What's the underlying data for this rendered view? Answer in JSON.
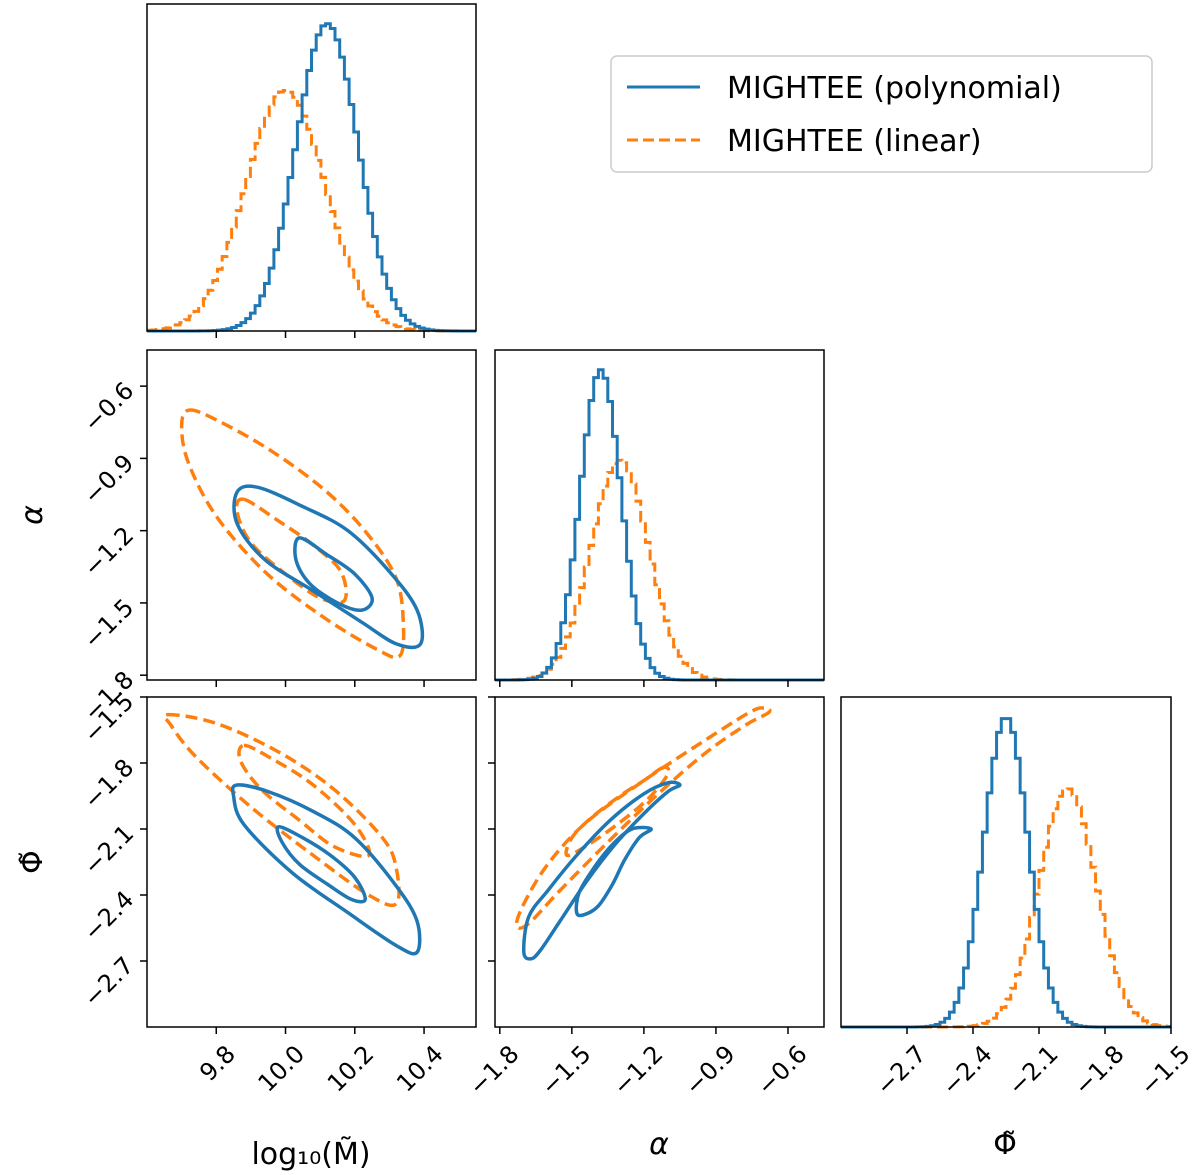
{
  "chart_data": {
    "type": "corner",
    "parameters": [
      {
        "key": "logM",
        "label": "log₁₀(M̃)",
        "range": [
          9.6,
          10.55
        ],
        "ticks": [
          9.8,
          10.0,
          10.2,
          10.4
        ],
        "tick_labels": [
          "9.8",
          "10.0",
          "10.2",
          "10.4"
        ]
      },
      {
        "key": "alpha",
        "label": "α",
        "range": [
          -1.82,
          -0.45
        ],
        "ticks": [
          -1.8,
          -1.5,
          -1.2,
          -0.9,
          -0.6
        ],
        "tick_labels": [
          "−1.8",
          "−1.5",
          "−1.2",
          "−0.9",
          "−0.6"
        ]
      },
      {
        "key": "phi",
        "label": "Φ̃",
        "range": [
          -3.0,
          -1.5
        ],
        "ticks": [
          -2.7,
          -2.4,
          -2.1,
          -1.8,
          -1.5
        ],
        "tick_labels": [
          "−2.7",
          "−2.4",
          "−2.1",
          "−1.8",
          "−1.5"
        ]
      }
    ],
    "legend": {
      "placement": "top-right"
    },
    "series": [
      {
        "name": "MIGHTEE (polynomial)",
        "color": "#1f77b4",
        "linestyle": "solid",
        "marginals": {
          "logM": {
            "mean": 10.12,
            "sd": 0.09
          },
          "alpha": {
            "mean": -1.38,
            "sd": 0.085
          },
          "phi": {
            "mean": -2.25,
            "sd": 0.1
          }
        },
        "contours": {
          "alpha_vs_logM": [
            {
              "level": "inner",
              "points": [
                [
                  10.04,
                  -1.23
                ],
                [
                  10.12,
                  -1.3
                ],
                [
                  10.2,
                  -1.38
                ],
                [
                  10.25,
                  -1.48
                ],
                [
                  10.22,
                  -1.53
                ],
                [
                  10.15,
                  -1.5
                ],
                [
                  10.07,
                  -1.42
                ],
                [
                  10.03,
                  -1.32
                ]
              ]
            },
            {
              "level": "outer",
              "points": [
                [
                  9.86,
                  -1.04
                ],
                [
                  9.92,
                  -1.02
                ],
                [
                  10.05,
                  -1.1
                ],
                [
                  10.18,
                  -1.2
                ],
                [
                  10.3,
                  -1.37
                ],
                [
                  10.38,
                  -1.53
                ],
                [
                  10.39,
                  -1.67
                ],
                [
                  10.32,
                  -1.67
                ],
                [
                  10.22,
                  -1.58
                ],
                [
                  10.08,
                  -1.45
                ],
                [
                  9.94,
                  -1.32
                ],
                [
                  9.86,
                  -1.17
                ]
              ]
            }
          ],
          "phi_vs_logM": [
            {
              "level": "inner",
              "points": [
                [
                  9.98,
                  -2.09
                ],
                [
                  10.05,
                  -2.14
                ],
                [
                  10.13,
                  -2.22
                ],
                [
                  10.2,
                  -2.32
                ],
                [
                  10.23,
                  -2.42
                ],
                [
                  10.19,
                  -2.42
                ],
                [
                  10.12,
                  -2.35
                ],
                [
                  10.04,
                  -2.26
                ],
                [
                  9.99,
                  -2.16
                ]
              ]
            },
            {
              "level": "outer",
              "points": [
                [
                  9.86,
                  -1.9
                ],
                [
                  9.95,
                  -1.93
                ],
                [
                  10.08,
                  -2.02
                ],
                [
                  10.2,
                  -2.14
                ],
                [
                  10.32,
                  -2.36
                ],
                [
                  10.38,
                  -2.52
                ],
                [
                  10.38,
                  -2.66
                ],
                [
                  10.32,
                  -2.63
                ],
                [
                  10.18,
                  -2.48
                ],
                [
                  10.02,
                  -2.3
                ],
                [
                  9.88,
                  -2.08
                ],
                [
                  9.85,
                  -1.95
                ]
              ]
            }
          ],
          "phi_vs_alpha": [
            {
              "level": "inner",
              "points": [
                [
                  -1.17,
                  -2.1
                ],
                [
                  -1.22,
                  -2.14
                ],
                [
                  -1.28,
                  -2.24
                ],
                [
                  -1.33,
                  -2.35
                ],
                [
                  -1.39,
                  -2.45
                ],
                [
                  -1.45,
                  -2.49
                ],
                [
                  -1.48,
                  -2.48
                ],
                [
                  -1.47,
                  -2.39
                ],
                [
                  -1.41,
                  -2.28
                ],
                [
                  -1.33,
                  -2.17
                ],
                [
                  -1.25,
                  -2.1
                ]
              ]
            },
            {
              "level": "outer",
              "points": [
                [
                  -1.05,
                  -1.9
                ],
                [
                  -1.1,
                  -1.93
                ],
                [
                  -1.2,
                  -2.03
                ],
                [
                  -1.32,
                  -2.17
                ],
                [
                  -1.44,
                  -2.34
                ],
                [
                  -1.55,
                  -2.52
                ],
                [
                  -1.63,
                  -2.65
                ],
                [
                  -1.67,
                  -2.69
                ],
                [
                  -1.7,
                  -2.66
                ],
                [
                  -1.68,
                  -2.5
                ],
                [
                  -1.6,
                  -2.38
                ],
                [
                  -1.48,
                  -2.22
                ],
                [
                  -1.34,
                  -2.06
                ],
                [
                  -1.2,
                  -1.94
                ],
                [
                  -1.1,
                  -1.89
                ]
              ]
            }
          ]
        }
      },
      {
        "name": "MIGHTEE (linear)",
        "color": "#ff7f0e",
        "linestyle": "dashed",
        "marginals": {
          "logM": {
            "mean": 10.0,
            "sd": 0.115
          },
          "alpha": {
            "mean": -1.3,
            "sd": 0.12
          },
          "phi": {
            "mean": -1.97,
            "sd": 0.13
          }
        },
        "contours": {
          "alpha_vs_logM": [
            {
              "level": "inner",
              "points": [
                [
                  9.88,
                  -1.07
                ],
                [
                  9.98,
                  -1.16
                ],
                [
                  10.08,
                  -1.26
                ],
                [
                  10.16,
                  -1.37
                ],
                [
                  10.17,
                  -1.49
                ],
                [
                  10.1,
                  -1.48
                ],
                [
                  10.0,
                  -1.38
                ],
                [
                  9.9,
                  -1.25
                ],
                [
                  9.86,
                  -1.12
                ]
              ]
            },
            {
              "level": "outer",
              "points": [
                [
                  9.72,
                  -0.7
                ],
                [
                  9.8,
                  -0.74
                ],
                [
                  9.96,
                  -0.87
                ],
                [
                  10.12,
                  -1.04
                ],
                [
                  10.24,
                  -1.22
                ],
                [
                  10.32,
                  -1.4
                ],
                [
                  10.34,
                  -1.58
                ],
                [
                  10.33,
                  -1.72
                ],
                [
                  10.26,
                  -1.69
                ],
                [
                  10.1,
                  -1.55
                ],
                [
                  9.94,
                  -1.37
                ],
                [
                  9.8,
                  -1.14
                ],
                [
                  9.72,
                  -0.92
                ],
                [
                  9.7,
                  -0.77
                ]
              ]
            }
          ],
          "phi_vs_logM": [
            {
              "level": "inner",
              "points": [
                [
                  9.88,
                  -1.72
                ],
                [
                  9.96,
                  -1.78
                ],
                [
                  10.08,
                  -1.9
                ],
                [
                  10.2,
                  -2.08
                ],
                [
                  10.24,
                  -2.22
                ],
                [
                  10.14,
                  -2.18
                ],
                [
                  10.04,
                  -2.06
                ],
                [
                  9.93,
                  -1.92
                ],
                [
                  9.87,
                  -1.79
                ]
              ]
            },
            {
              "level": "outer",
              "points": [
                [
                  9.66,
                  -1.58
                ],
                [
                  9.8,
                  -1.62
                ],
                [
                  9.98,
                  -1.75
                ],
                [
                  10.14,
                  -1.92
                ],
                [
                  10.28,
                  -2.14
                ],
                [
                  10.32,
                  -2.28
                ],
                [
                  10.32,
                  -2.44
                ],
                [
                  10.24,
                  -2.4
                ],
                [
                  10.08,
                  -2.22
                ],
                [
                  9.9,
                  -2.0
                ],
                [
                  9.74,
                  -1.77
                ],
                [
                  9.67,
                  -1.63
                ]
              ]
            }
          ],
          "phi_vs_alpha": [
            {
              "level": "inner",
              "points": [
                [
                  -1.12,
                  -1.82
                ],
                [
                  -1.2,
                  -1.88
                ],
                [
                  -1.3,
                  -1.95
                ],
                [
                  -1.42,
                  -2.05
                ],
                [
                  -1.5,
                  -2.14
                ],
                [
                  -1.52,
                  -2.22
                ],
                [
                  -1.43,
                  -2.17
                ],
                [
                  -1.3,
                  -2.07
                ],
                [
                  -1.18,
                  -1.96
                ],
                [
                  -1.1,
                  -1.85
                ]
              ]
            },
            {
              "level": "outer",
              "points": [
                [
                  -0.7,
                  -1.55
                ],
                [
                  -0.76,
                  -1.57
                ],
                [
                  -0.95,
                  -1.7
                ],
                [
                  -1.2,
                  -1.88
                ],
                [
                  -1.44,
                  -2.07
                ],
                [
                  -1.6,
                  -2.26
                ],
                [
                  -1.7,
                  -2.44
                ],
                [
                  -1.73,
                  -2.54
                ],
                [
                  -1.68,
                  -2.53
                ],
                [
                  -1.55,
                  -2.38
                ],
                [
                  -1.35,
                  -2.16
                ],
                [
                  -1.15,
                  -1.95
                ],
                [
                  -0.95,
                  -1.76
                ],
                [
                  -0.78,
                  -1.63
                ],
                [
                  -0.68,
                  -1.57
                ]
              ]
            }
          ]
        }
      }
    ]
  }
}
